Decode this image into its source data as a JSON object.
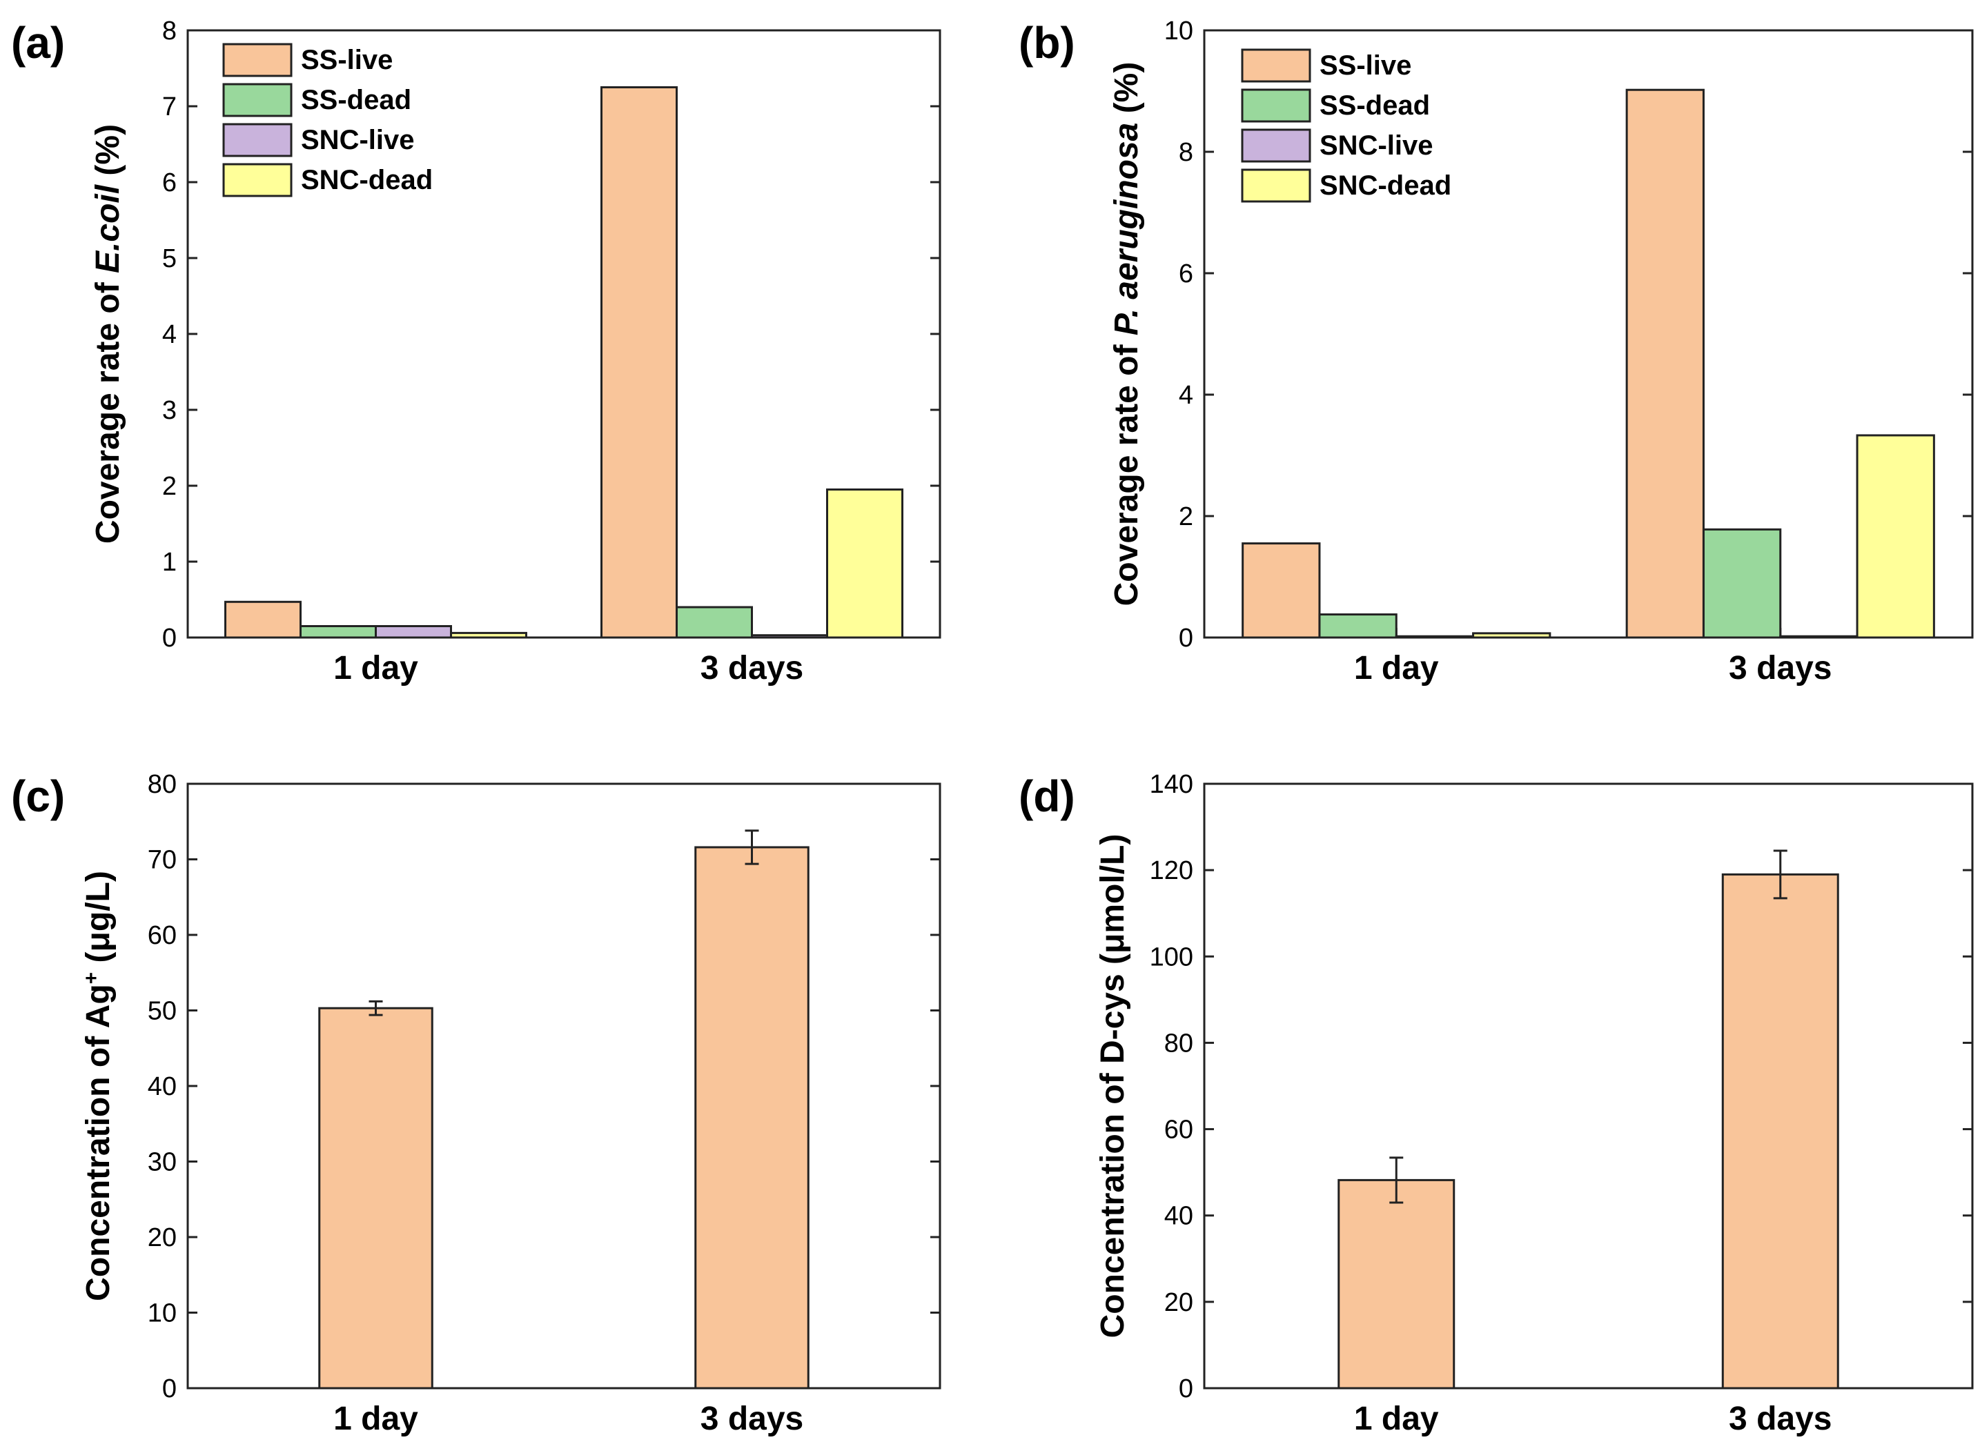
{
  "chart_data": [
    {
      "id": "a",
      "panel_label": "(a)",
      "type": "bar",
      "ylabel_parts": [
        {
          "text": "Coverage rate of ",
          "italic": false
        },
        {
          "text": "E.coil",
          "italic": true
        },
        {
          "text": " (%)",
          "italic": false
        }
      ],
      "ylim": [
        0,
        8
      ],
      "yticks": [
        0,
        1,
        2,
        3,
        4,
        5,
        6,
        7,
        8
      ],
      "categories": [
        "1 day",
        "3 days"
      ],
      "series": [
        {
          "name": "SS-live",
          "color": "#F9C59A",
          "values": [
            0.47,
            7.25
          ]
        },
        {
          "name": "SS-dead",
          "color": "#99D89C",
          "values": [
            0.15,
            0.4
          ]
        },
        {
          "name": "SNC-live",
          "color": "#C9B3DC",
          "values": [
            0.15,
            0.03
          ]
        },
        {
          "name": "SNC-dead",
          "color": "#FFFF99",
          "values": [
            0.06,
            1.95
          ]
        }
      ],
      "legend": "top-left"
    },
    {
      "id": "b",
      "panel_label": "(b)",
      "type": "bar",
      "ylabel_parts": [
        {
          "text": "Coverage rate of ",
          "italic": false
        },
        {
          "text": "P. aeruginosa",
          "italic": true
        },
        {
          "text": " (%)",
          "italic": false
        }
      ],
      "ylim": [
        0,
        10
      ],
      "yticks": [
        0,
        2,
        4,
        6,
        8,
        10
      ],
      "categories": [
        "1 day",
        "3 days"
      ],
      "series": [
        {
          "name": "SS-live",
          "color": "#F9C59A",
          "values": [
            1.55,
            9.02
          ]
        },
        {
          "name": "SS-dead",
          "color": "#99D89C",
          "values": [
            0.38,
            1.78
          ]
        },
        {
          "name": "SNC-live",
          "color": "#C9B3DC",
          "values": [
            0.02,
            0.02
          ]
        },
        {
          "name": "SNC-dead",
          "color": "#FFFF99",
          "values": [
            0.07,
            3.33
          ]
        }
      ],
      "legend": "top-left"
    },
    {
      "id": "c",
      "panel_label": "(c)",
      "type": "bar",
      "ylabel_parts": [
        {
          "text": "Concentration of Ag",
          "italic": false
        },
        {
          "text": "+",
          "italic": false,
          "sup": true
        },
        {
          "text": " (μg/L)",
          "italic": false
        }
      ],
      "ylim": [
        0,
        80
      ],
      "yticks": [
        0,
        10,
        20,
        30,
        40,
        50,
        60,
        70,
        80
      ],
      "categories": [
        "1 day",
        "3 days"
      ],
      "series": [
        {
          "name": "Ag+",
          "color": "#F9C59A",
          "values": [
            50.3,
            71.6
          ],
          "errors": [
            0.9,
            2.2
          ]
        }
      ]
    },
    {
      "id": "d",
      "panel_label": "(d)",
      "type": "bar",
      "ylabel_parts": [
        {
          "text": "Concentration of D-cys (μmol/L)",
          "italic": false
        }
      ],
      "ylim": [
        0,
        140
      ],
      "yticks": [
        0,
        20,
        40,
        60,
        80,
        100,
        120,
        140
      ],
      "categories": [
        "1 day",
        "3 days"
      ],
      "series": [
        {
          "name": "D-cys",
          "color": "#F9C59A",
          "values": [
            48.2,
            119.0
          ],
          "errors": [
            5.2,
            5.5
          ]
        }
      ]
    }
  ]
}
